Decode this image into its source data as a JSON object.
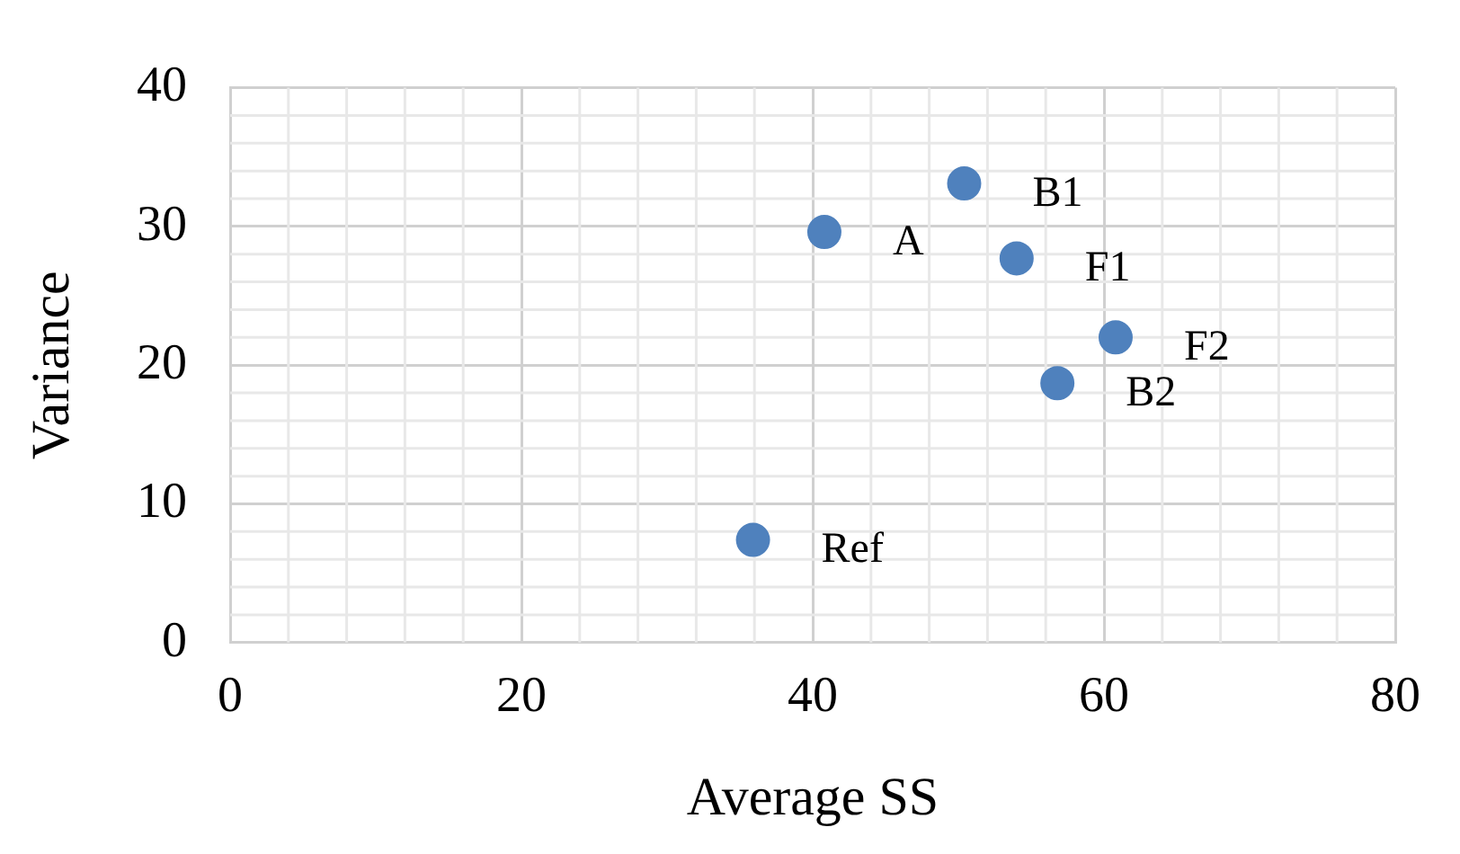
{
  "chart_data": {
    "type": "scatter",
    "xlabel": "Average SS",
    "ylabel": "Variance",
    "x": [
      40.8,
      50.4,
      54.0,
      60.8,
      56.8,
      35.9
    ],
    "series": [
      {
        "color": "#4f81bd",
        "values": [
          29.6,
          33.1,
          27.7,
          22.0,
          18.7,
          7.4
        ]
      }
    ],
    "xlim": [
      0,
      80
    ],
    "xticks": [
      0,
      20,
      40,
      60,
      80
    ],
    "ylim": [
      0,
      40
    ],
    "yticks": [
      0,
      10,
      20,
      30,
      40
    ],
    "grid": true,
    "legend": false,
    "marker": "circle",
    "annotations": [
      {
        "text": "A",
        "x": 40.8,
        "y": 29.6
      },
      {
        "text": "B1",
        "x": 50.4,
        "y": 33.1
      },
      {
        "text": "F1",
        "x": 54.0,
        "y": 27.7
      },
      {
        "text": "F2",
        "x": 60.8,
        "y": 22.0
      },
      {
        "text": "B2",
        "x": 56.8,
        "y": 18.7
      },
      {
        "text": "Ref",
        "x": 35.9,
        "y": 7.4
      }
    ]
  }
}
